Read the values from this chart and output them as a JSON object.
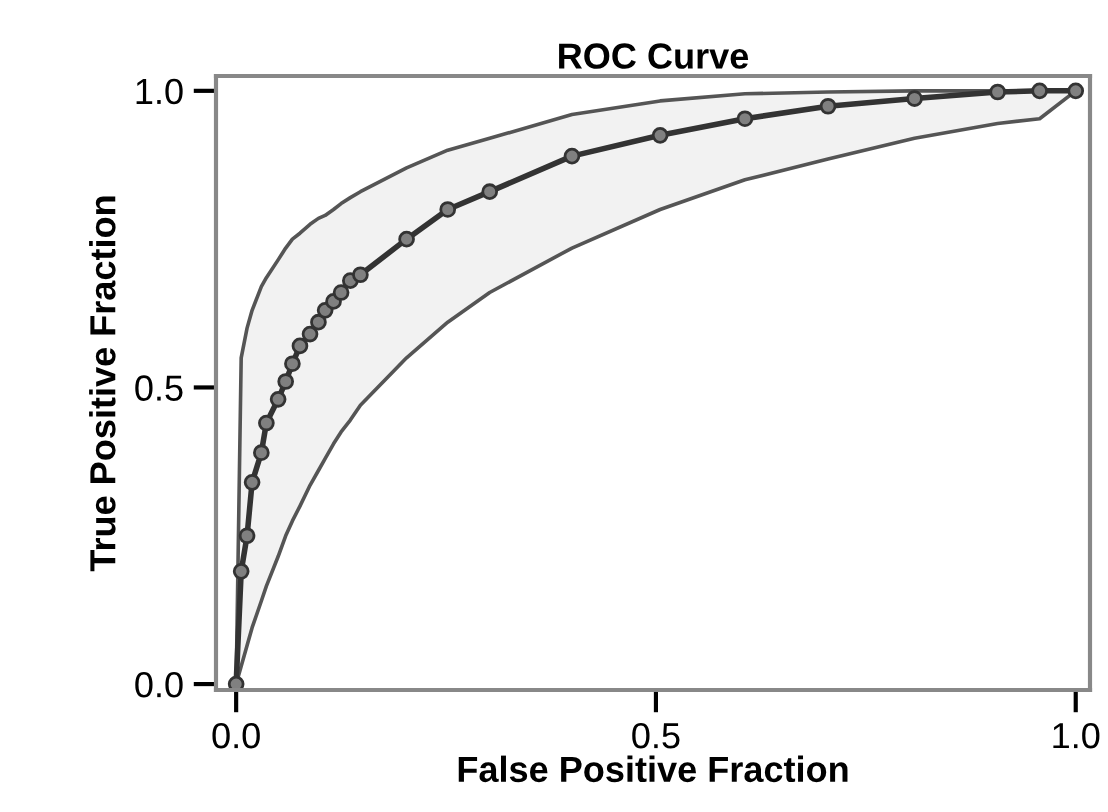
{
  "chart_data": {
    "type": "line",
    "title": "ROC Curve",
    "xlabel": "False Positive Fraction",
    "ylabel": "True Positive Fraction",
    "xlim": [
      -0.024,
      1.017
    ],
    "ylim": [
      -0.01,
      1.025
    ],
    "xticks": [
      {
        "value": 0,
        "label": "0.0"
      },
      {
        "value": 0.5,
        "label": "0.5"
      },
      {
        "value": 1,
        "label": "1.0"
      }
    ],
    "yticks": [
      {
        "value": 0,
        "label": "0.0"
      },
      {
        "value": 0.5,
        "label": "0.5"
      },
      {
        "value": 1,
        "label": "1.0"
      }
    ],
    "grid": false,
    "marker": "circle",
    "series": [
      {
        "color": "#333333",
        "x": [
          0,
          0.006,
          0.013,
          0.019,
          0.03,
          0.036,
          0.05,
          0.059,
          0.067,
          0.076,
          0.088,
          0.098,
          0.106,
          0.116,
          0.125,
          0.136,
          0.148,
          0.203,
          0.252,
          0.302,
          0.4,
          0.505,
          0.606,
          0.705,
          0.808,
          0.907,
          0.957,
          1.0
        ],
        "values": [
          0,
          0.19,
          0.25,
          0.34,
          0.39,
          0.44,
          0.48,
          0.51,
          0.54,
          0.57,
          0.59,
          0.61,
          0.63,
          0.645,
          0.66,
          0.68,
          0.69,
          0.75,
          0.8,
          0.83,
          0.89,
          0.925,
          0.953,
          0.974,
          0.987,
          0.998,
          1.0,
          1.0
        ],
        "upper": [
          0,
          0.55,
          0.6,
          0.63,
          0.67,
          0.685,
          0.715,
          0.735,
          0.75,
          0.76,
          0.775,
          0.785,
          0.79,
          0.8,
          0.81,
          0.82,
          0.83,
          0.87,
          0.9,
          0.92,
          0.96,
          0.983,
          0.995,
          0.998,
          1.0,
          1.0,
          1.0,
          1.0
        ],
        "lower": [
          0,
          0.03,
          0.065,
          0.095,
          0.14,
          0.165,
          0.215,
          0.25,
          0.275,
          0.3,
          0.335,
          0.36,
          0.38,
          0.405,
          0.425,
          0.445,
          0.47,
          0.55,
          0.61,
          0.66,
          0.735,
          0.8,
          0.85,
          0.885,
          0.92,
          0.945,
          0.953,
          1.0
        ]
      }
    ]
  }
}
